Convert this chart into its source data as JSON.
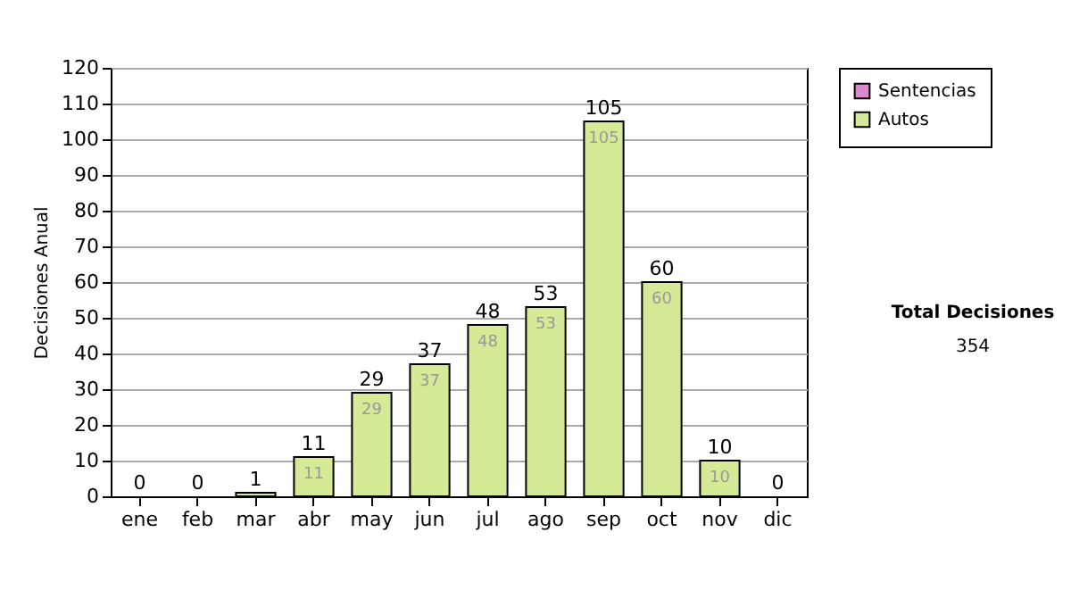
{
  "chart_data": {
    "type": "bar",
    "stacked": true,
    "ylabel": "Decisiones Anual",
    "categories": [
      "ene",
      "feb",
      "mar",
      "abr",
      "may",
      "jun",
      "jul",
      "ago",
      "sep",
      "oct",
      "nov",
      "dic"
    ],
    "series": [
      {
        "name": "Sentencias",
        "color": "#dd88cc",
        "values": [
          0,
          0,
          0,
          0,
          0,
          0,
          0,
          0,
          0,
          0,
          0,
          0
        ]
      },
      {
        "name": "Autos",
        "color": "#d4ea97",
        "values": [
          0,
          0,
          1,
          11,
          29,
          37,
          48,
          53,
          105,
          60,
          10,
          0
        ],
        "value_labels": [
          null,
          null,
          null,
          "11",
          "29",
          "37",
          "48",
          "53",
          "105",
          "60",
          "10",
          null
        ]
      }
    ],
    "totals": [
      "0",
      "0",
      "1",
      "11",
      "29",
      "37",
      "48",
      "53",
      "105",
      "60",
      "10",
      "0"
    ],
    "ylim": [
      0,
      120
    ],
    "yticks": [
      0,
      10,
      20,
      30,
      40,
      50,
      60,
      70,
      80,
      90,
      100,
      110,
      120
    ],
    "grid": "y",
    "legend": "right",
    "annotations": [
      "Total Decisiones",
      "354"
    ]
  }
}
